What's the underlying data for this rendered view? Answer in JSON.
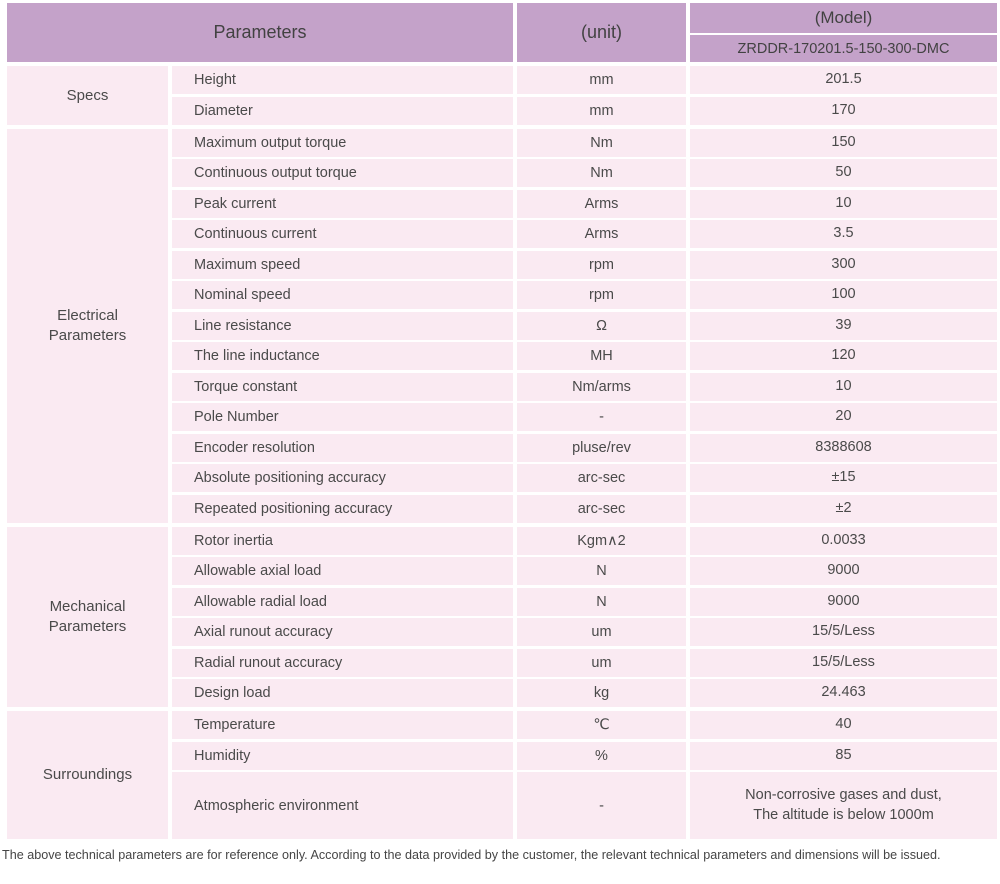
{
  "table": {
    "header": {
      "parameters_label": "Parameters",
      "unit_label": "(unit)",
      "model_label": "(Model)",
      "model_value": "ZRDDR-170201.5-150-300-DMC"
    },
    "sections": [
      {
        "label": "Specs",
        "rows": [
          {
            "param": "Height",
            "unit": "mm",
            "value": "201.5"
          },
          {
            "param": "Diameter",
            "unit": "mm",
            "value": "170"
          }
        ]
      },
      {
        "label": "Electrical\nParameters",
        "rows": [
          {
            "param": "Maximum output torque",
            "unit": "Nm",
            "value": "150"
          },
          {
            "param": "Continuous output torque",
            "unit": "Nm",
            "value": "50"
          },
          {
            "param": "Peak current",
            "unit": "Arms",
            "value": "10"
          },
          {
            "param": "Continuous current",
            "unit": "Arms",
            "value": "3.5"
          },
          {
            "param": "Maximum speed",
            "unit": "rpm",
            "value": "300"
          },
          {
            "param": "Nominal speed",
            "unit": "rpm",
            "value": "100"
          },
          {
            "param": "Line resistance",
            "unit": "Ω",
            "value": "39"
          },
          {
            "param": "The line inductance",
            "unit": "MH",
            "value": "120"
          },
          {
            "param": "Torque constant",
            "unit": "Nm/arms",
            "value": "10"
          },
          {
            "param": "Pole Number",
            "unit": "-",
            "value": "20"
          },
          {
            "param": "Encoder resolution",
            "unit": "pluse/rev",
            "value": "8388608"
          },
          {
            "param": "Absolute positioning accuracy",
            "unit": "arc-sec",
            "value": "±15"
          },
          {
            "param": "Repeated positioning accuracy",
            "unit": "arc-sec",
            "value": "±2"
          }
        ]
      },
      {
        "label": "Mechanical\nParameters",
        "rows": [
          {
            "param": "Rotor inertia",
            "unit": "Kgm∧2",
            "value": "0.0033"
          },
          {
            "param": "Allowable axial load",
            "unit": "N",
            "value": "9000"
          },
          {
            "param": "Allowable radial load",
            "unit": "N",
            "value": "9000"
          },
          {
            "param": "Axial runout accuracy",
            "unit": "um",
            "value": "15/5/Less"
          },
          {
            "param": "Radial runout accuracy",
            "unit": "um",
            "value": "15/5/Less"
          },
          {
            "param": "Design load",
            "unit": "kg",
            "value": "24.463"
          }
        ]
      },
      {
        "label": "Surroundings",
        "rows": [
          {
            "param": "Temperature",
            "unit": "℃",
            "value": "40"
          },
          {
            "param": "Humidity",
            "unit": "%",
            "value": "85"
          },
          {
            "param": "Atmospheric environment",
            "unit": "-",
            "value": "Non-corrosive gases and dust,\nThe altitude is below 1000m"
          }
        ]
      }
    ]
  },
  "footer": {
    "note": "The above technical parameters are for reference only. According to the data provided by the customer, the relevant technical parameters and dimensions will be issued."
  },
  "colors": {
    "header_bg": "#c4a2c9",
    "row_bg": "#faeaf2",
    "text": "#4a4a4a"
  }
}
